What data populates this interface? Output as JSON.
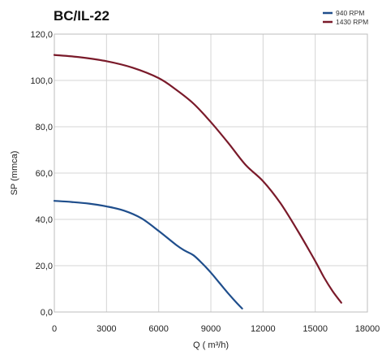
{
  "chart_data": {
    "type": "line",
    "title": "BC/IL-22",
    "xlabel": "Q ( m³/h)",
    "ylabel": "SP (mmca)",
    "xlim": [
      0,
      18000
    ],
    "ylim": [
      0,
      120
    ],
    "xticks": [
      0,
      3000,
      6000,
      9000,
      12000,
      15000,
      18000
    ],
    "xtick_labels": [
      "0",
      "3000",
      "6000",
      "9000",
      "12000",
      "15000",
      "18000"
    ],
    "yticks": [
      0,
      20,
      40,
      60,
      80,
      100,
      120
    ],
    "ytick_labels": [
      "0,0",
      "20,0",
      "40,0",
      "60,0",
      "80,0",
      "100,0",
      "120,0"
    ],
    "grid": true,
    "legend_position": "top-right",
    "series": [
      {
        "name": "940 RPM",
        "color": "#1f4e8c",
        "x": [
          0,
          1000,
          2000,
          3000,
          4000,
          5000,
          6000,
          7000,
          7500,
          8000,
          8500,
          9000,
          9500,
          10000,
          10500,
          10800
        ],
        "y": [
          48,
          47.5,
          46.8,
          45.6,
          43.8,
          40.5,
          35,
          29,
          26.5,
          24.5,
          21,
          17,
          12.5,
          8,
          3.8,
          1.5
        ]
      },
      {
        "name": "1430 RPM",
        "color": "#7a1a2a",
        "x": [
          0,
          1500,
          3000,
          4500,
          6000,
          7000,
          8000,
          9000,
          10000,
          11000,
          12000,
          13000,
          14000,
          15000,
          15500,
          16000,
          16500
        ],
        "y": [
          111,
          110,
          108.3,
          105.5,
          101,
          96,
          90,
          82,
          73,
          63.5,
          56.5,
          47,
          35,
          22,
          15,
          9,
          4
        ]
      }
    ]
  }
}
